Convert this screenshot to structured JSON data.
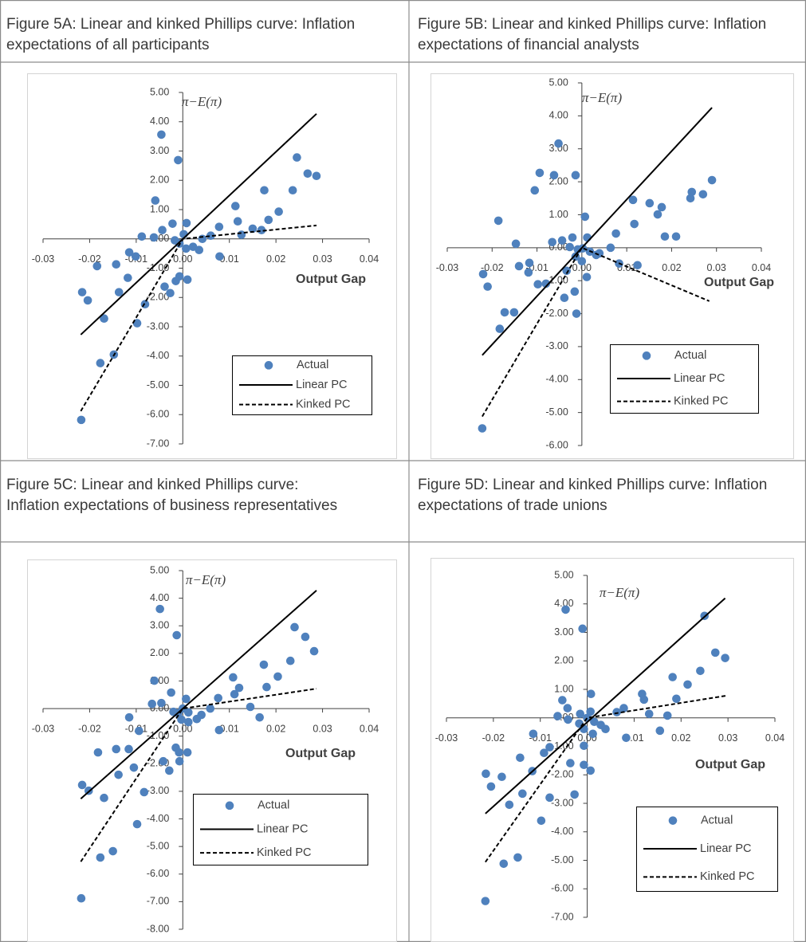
{
  "chart_data": [
    {
      "type": "scatter",
      "title": "Figure 5A: Linear and kinked Phillips curve: Inflation expectations of all participants",
      "y_label": "π−E(π)",
      "x_label": "Output Gap",
      "xlim": [
        -0.03,
        0.04
      ],
      "ylim": [
        -7,
        5
      ],
      "xticks": [
        -0.03,
        -0.02,
        -0.01,
        {
          "value": 0,
          "label": "0.00"
        },
        0.01,
        0.02,
        0.03,
        0.04
      ],
      "yticks": [
        {
          "value": 5,
          "label": "5.00"
        },
        {
          "value": 4,
          "label": "4.00"
        },
        {
          "value": 3,
          "label": "3.00"
        },
        {
          "value": 2,
          "label": "2.00"
        },
        {
          "value": 1,
          "label": "1.00"
        },
        {
          "value": 0,
          "label": "0.00"
        },
        {
          "value": -1,
          "label": "-1.00"
        },
        {
          "value": -2,
          "label": "-2.00"
        },
        {
          "value": -3,
          "label": "-3.00"
        },
        {
          "value": -4,
          "label": "-4.00"
        },
        {
          "value": -5,
          "label": "-5.00"
        },
        {
          "value": -6,
          "label": "-6.00"
        },
        {
          "value": -7,
          "label": "-7.00"
        }
      ],
      "grid": false,
      "legend": "lower right",
      "series": [
        {
          "name": "Actual",
          "mode": "markers",
          "color": "#4f81bd",
          "x": [
            -0.0046,
            -0.001,
            0.0245,
            0.0268,
            0.0287,
            0.0175,
            0.0236,
            -0.0059,
            0.0113,
            0.0206,
            0.0118,
            0.0184,
            -0.0022,
            0.0008,
            -0.0044,
            0.0078,
            0.015,
            0.0169,
            -0.0088,
            -0.0062,
            0.0002,
            0.0126,
            -0.0017,
            -0.0007,
            0.0007,
            0.0022,
            0.0035,
            0.0042,
            0.006,
            -0.0115,
            -0.0101,
            0.0079,
            -0.0143,
            -0.0184,
            -0.0118,
            -0.0007,
            0.001,
            -0.0015,
            -0.0039,
            -0.0027,
            -0.0137,
            -0.0216,
            -0.0204,
            -0.0081,
            -0.0169,
            -0.0098,
            -0.0148,
            -0.0177,
            -0.0218
          ],
          "values": [
            3.56,
            2.69,
            2.78,
            2.23,
            2.15,
            1.66,
            1.66,
            1.31,
            1.12,
            0.93,
            0.6,
            0.65,
            0.52,
            0.54,
            0.3,
            0.41,
            0.35,
            0.3,
            0.08,
            0.05,
            0.16,
            0.14,
            -0.05,
            -0.16,
            -0.33,
            -0.27,
            -0.38,
            0.0,
            0.11,
            -0.46,
            -0.6,
            -0.6,
            -0.87,
            -0.93,
            -1.33,
            -1.28,
            -1.39,
            -1.44,
            -1.63,
            -1.85,
            -1.82,
            -1.82,
            -2.1,
            -2.23,
            -2.72,
            -2.88,
            -3.95,
            -4.24,
            -6.18
          ]
        },
        {
          "name": "Linear PC",
          "mode": "lines",
          "line_style": "solid",
          "color": "#000000",
          "x": [
            -0.0219,
            0.0287
          ],
          "values": [
            -3.27,
            4.27
          ]
        },
        {
          "name": "Kinked PC",
          "mode": "lines",
          "line_style": "dashed",
          "color": "#000000",
          "x": [
            -0.0219,
            0,
            0.0287
          ],
          "values": [
            -5.88,
            0,
            0.46
          ]
        }
      ]
    },
    {
      "type": "scatter",
      "title": "Figure 5B: Linear and kinked Phillips curve: Inflation expectations of financial analysts",
      "y_label": "π−E(π)",
      "x_label": "Output Gap",
      "xlim": [
        -0.03,
        0.04
      ],
      "ylim": [
        -6,
        5
      ],
      "xticks": [
        -0.03,
        -0.02,
        -0.01,
        {
          "value": 0,
          "label": "0.00"
        },
        0.01,
        0.02,
        0.03,
        0.04
      ],
      "yticks": [
        {
          "value": 5,
          "label": "5.00"
        },
        {
          "value": 4,
          "label": "4.00"
        },
        {
          "value": 3,
          "label": "3.00"
        },
        {
          "value": 2,
          "label": "2.00"
        },
        {
          "value": 1,
          "label": "1.00"
        },
        {
          "value": 0,
          "label": "0.00"
        },
        {
          "value": -1,
          "label": "-1.00"
        },
        {
          "value": -2,
          "label": "-2.00"
        },
        {
          "value": -3,
          "label": "-3.00"
        },
        {
          "value": -4,
          "label": "-4.00"
        },
        {
          "value": -5,
          "label": "-5.00"
        },
        {
          "value": -6,
          "label": "-6.00"
        }
      ],
      "grid": false,
      "legend": "lower right",
      "series": [
        {
          "name": "Actual",
          "mode": "markers",
          "color": "#4f81bd",
          "x": [
            -0.0052,
            -0.0094,
            -0.0062,
            -0.0014,
            0.029,
            -0.0105,
            0.0114,
            0.0151,
            0.0242,
            0.0245,
            0.027,
            0.0178,
            0.0169,
            -0.0186,
            0.0007,
            0.0117,
            0.0076,
            0.0185,
            0.021,
            -0.0147,
            -0.0066,
            -0.0044,
            -0.0021,
            0.0012,
            -0.0027,
            -0.0009,
            0.0002,
            0.0018,
            0.0032,
            0.0039,
            0.0064,
            -0.0014,
            0.0,
            -0.014,
            -0.0117,
            -0.0034,
            0.0011,
            0.0083,
            0.0124,
            -0.022,
            -0.0119,
            -0.021,
            -0.008,
            -0.0098,
            -0.0016,
            -0.0039,
            -0.0172,
            -0.0151,
            -0.0012,
            -0.0183,
            -0.0222
          ],
          "values": [
            3.16,
            2.27,
            2.2,
            2.2,
            2.05,
            1.74,
            1.45,
            1.35,
            1.5,
            1.69,
            1.62,
            1.23,
            1.01,
            0.82,
            0.94,
            0.72,
            0.43,
            0.34,
            0.34,
            0.12,
            0.17,
            0.22,
            0.31,
            0.31,
            0.02,
            -0.05,
            -0.02,
            -0.12,
            -0.22,
            -0.17,
            0.0,
            -0.27,
            -0.41,
            -0.56,
            -0.46,
            -0.7,
            -0.89,
            -0.48,
            -0.53,
            -0.8,
            -0.75,
            -1.18,
            -1.09,
            -1.11,
            -1.33,
            -1.52,
            -1.96,
            -1.96,
            -2.0,
            -2.46,
            -5.48
          ]
        },
        {
          "name": "Linear PC",
          "mode": "lines",
          "line_style": "solid",
          "color": "#000000",
          "x": [
            -0.0222,
            0.029
          ],
          "values": [
            -3.26,
            4.25
          ]
        },
        {
          "name": "Kinked PC",
          "mode": "lines",
          "line_style": "dashed",
          "color": "#000000",
          "x": [
            -0.0222,
            0,
            0.0284
          ],
          "values": [
            -5.12,
            0,
            -1.62
          ]
        }
      ]
    },
    {
      "type": "scatter",
      "title": "Figure 5C: Linear and kinked Phillips curve: Inflation expectations of business representatives",
      "y_label": "π−E(π)",
      "x_label": "Output Gap",
      "xlim": [
        -0.03,
        0.04
      ],
      "ylim": [
        -8,
        5
      ],
      "xticks": [
        -0.03,
        -0.02,
        -0.01,
        {
          "value": 0,
          "label": "0.00"
        },
        0.01,
        0.02,
        0.03,
        0.04
      ],
      "yticks": [
        {
          "value": 5,
          "label": "5.00"
        },
        {
          "value": 4,
          "label": "4.00"
        },
        {
          "value": 3,
          "label": "3.00"
        },
        {
          "value": 2,
          "label": "2.00"
        },
        {
          "value": 1,
          "label": "1.00"
        },
        {
          "value": 0,
          "label": "0.00"
        },
        {
          "value": -1,
          "label": "-1.00"
        },
        {
          "value": -2,
          "label": "-2.00"
        },
        {
          "value": -3,
          "label": "-3.00"
        },
        {
          "value": -4,
          "label": "-4.00"
        },
        {
          "value": -5,
          "label": "-5.00"
        },
        {
          "value": -6,
          "label": "-6.00"
        },
        {
          "value": -7,
          "label": "-7.00"
        },
        {
          "value": -8,
          "label": "-8.00"
        }
      ],
      "grid": false,
      "legend": "lower right",
      "series": [
        {
          "name": "Actual",
          "mode": "markers",
          "color": "#4f81bd",
          "x": [
            -0.0049,
            -0.0013,
            0.024,
            0.0263,
            0.0282,
            0.0231,
            0.0174,
            -0.0061,
            0.0108,
            0.0204,
            0.0121,
            0.0111,
            0.018,
            -0.0025,
            0.0076,
            0.0007,
            -0.0066,
            -0.0046,
            0.0145,
            -0.002,
            -0.001,
            0.0,
            0.0012,
            0.003,
            0.004,
            0.0059,
            -0.0003,
            0.0012,
            -0.0115,
            0.0165,
            0.0078,
            -0.0094,
            -0.0015,
            0.001,
            -0.0008,
            -0.0182,
            -0.0143,
            -0.0116,
            -0.0042,
            -0.0029,
            -0.0007,
            -0.0105,
            -0.0138,
            -0.0216,
            -0.0202,
            -0.0083,
            -0.0169,
            -0.0098,
            -0.015,
            -0.0177,
            -0.0218
          ],
          "values": [
            3.61,
            2.66,
            2.95,
            2.6,
            2.08,
            1.73,
            1.59,
            1.01,
            1.13,
            1.16,
            0.75,
            0.52,
            0.78,
            0.58,
            0.38,
            0.35,
            0.17,
            0.2,
            0.06,
            -0.12,
            -0.17,
            0.0,
            -0.14,
            -0.38,
            -0.23,
            0.0,
            -0.4,
            -0.49,
            -0.32,
            -0.32,
            -0.78,
            -0.81,
            -1.42,
            -1.59,
            -1.59,
            -1.59,
            -1.47,
            -1.47,
            -1.91,
            -2.25,
            -1.91,
            -2.14,
            -2.4,
            -2.77,
            -2.98,
            -3.03,
            -3.24,
            -4.19,
            -5.17,
            -5.4,
            -6.88
          ]
        },
        {
          "name": "Linear PC",
          "mode": "lines",
          "line_style": "solid",
          "color": "#000000",
          "x": [
            -0.0219,
            0.0287
          ],
          "values": [
            -3.27,
            4.28
          ]
        },
        {
          "name": "Kinked PC",
          "mode": "lines",
          "line_style": "dashed",
          "color": "#000000",
          "x": [
            -0.0219,
            0,
            0.0287
          ],
          "values": [
            -5.55,
            0,
            0.72
          ]
        }
      ]
    },
    {
      "type": "scatter",
      "title": "Figure 5D: Linear and kinked Phillips curve: Inflation expectations of trade unions",
      "y_label": "π−E(π)",
      "x_label": "Output Gap",
      "xlim": [
        -0.03,
        0.04
      ],
      "ylim": [
        -7,
        5
      ],
      "xticks": [
        -0.03,
        -0.02,
        -0.01,
        {
          "value": 0,
          "label": "0.00"
        },
        0.01,
        0.02,
        0.03,
        0.04
      ],
      "yticks": [
        {
          "value": 5,
          "label": "5.00"
        },
        {
          "value": 4,
          "label": "4.00"
        },
        {
          "value": 3,
          "label": "3.00"
        },
        {
          "value": 2,
          "label": "2.00"
        },
        {
          "value": 1,
          "label": "1.00"
        },
        {
          "value": 0,
          "label": "0.00"
        },
        {
          "value": -1,
          "label": "-1.00"
        },
        {
          "value": -2,
          "label": "-2.00"
        },
        {
          "value": -3,
          "label": "-3.00"
        },
        {
          "value": -4,
          "label": "-4.00"
        },
        {
          "value": -5,
          "label": "-5.00"
        },
        {
          "value": -6,
          "label": "-6.00"
        },
        {
          "value": -7,
          "label": "-7.00"
        }
      ],
      "grid": false,
      "legend": "lower right",
      "series": [
        {
          "name": "Actual",
          "mode": "markers",
          "color": "#4f81bd",
          "x": [
            -0.0046,
            -0.001,
            0.025,
            0.0273,
            0.0294,
            0.0241,
            0.0182,
            0.0214,
            0.0008,
            0.0117,
            0.0121,
            0.019,
            -0.0053,
            -0.0042,
            0.0078,
            0.0063,
            0.0132,
            0.0171,
            -0.0063,
            -0.0041,
            -0.0015,
            0.0,
            0.0007,
            -0.0017,
            0.0015,
            0.0029,
            0.0039,
            -0.0007,
            0.0012,
            -0.0115,
            0.0083,
            0.0155,
            -0.0007,
            -0.008,
            -0.0092,
            -0.0143,
            -0.0036,
            -0.0007,
            0.0007,
            -0.0117,
            -0.0216,
            -0.0182,
            -0.0205,
            -0.0138,
            -0.0027,
            -0.008,
            -0.0166,
            -0.0098,
            -0.0178,
            -0.0148,
            -0.0217
          ],
          "values": [
            3.8,
            3.13,
            3.58,
            2.29,
            2.1,
            1.65,
            1.43,
            1.17,
            0.84,
            0.84,
            0.64,
            0.67,
            0.62,
            0.34,
            0.34,
            0.2,
            0.14,
            0.08,
            0.06,
            -0.06,
            0.14,
            0.0,
            0.22,
            -0.2,
            -0.14,
            -0.25,
            -0.39,
            -0.39,
            -0.56,
            -0.56,
            -0.7,
            -0.45,
            -0.98,
            -1.03,
            -1.23,
            -1.4,
            -1.59,
            -1.65,
            -1.85,
            -1.87,
            -1.96,
            -2.07,
            -2.41,
            -2.66,
            -2.69,
            -2.8,
            -3.05,
            -3.61,
            -5.12,
            -4.9,
            -6.43
          ]
        },
        {
          "name": "Linear PC",
          "mode": "lines",
          "line_style": "solid",
          "color": "#000000",
          "x": [
            -0.0217,
            0.0294
          ],
          "values": [
            -3.36,
            4.2
          ]
        },
        {
          "name": "Kinked PC",
          "mode": "lines",
          "line_style": "dashed",
          "color": "#000000",
          "x": [
            -0.0217,
            0,
            0.0297
          ],
          "values": [
            -5.06,
            0,
            0.78
          ]
        }
      ]
    }
  ]
}
